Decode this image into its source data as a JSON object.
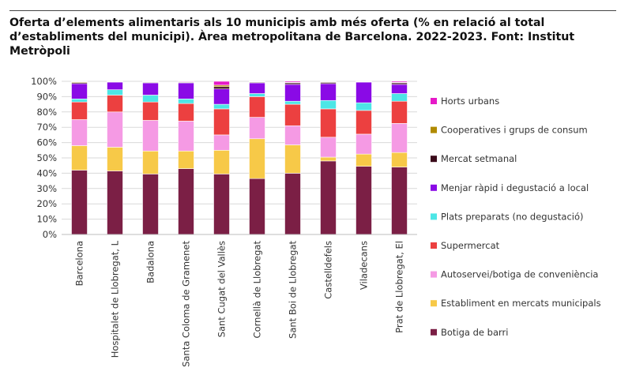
{
  "colors": {
    "Botiga de barri": "#7b1f45",
    "Establiment en mercats municipals": "#f7c948",
    "Autoservei/botiga de conveniència": "#f59ae4",
    "Supermercat": "#ec4040",
    "Plats preparats (no degustació)": "#4de6e6",
    "Menjar ràpid i degustació a local": "#8a0ae6",
    "Mercat setmanal": "#3a0a1a",
    "Cooperatives i grups de consum": "#b08a00",
    "Horts urbans": "#e619c8"
  },
  "chart_data": {
    "type": "bar",
    "stacked": true,
    "title": "Oferta d’elements alimentaris als 10 municipis amb més oferta (% en relació al total d’establiments del municipi). Àrea metropolitana de Barcelona. 2022-2023. Font: Institut Metròpoli",
    "xlabel": "",
    "ylabel": "",
    "ylim": [
      0,
      100
    ],
    "yticks": [
      "0%",
      "10%",
      "20%",
      "30%",
      "40%",
      "50%",
      "60%",
      "70%",
      "80%",
      "90%",
      "100%"
    ],
    "legend_position": "right",
    "categories": [
      "Barcelona",
      "Hospitalet de Llobregat, L",
      "Badalona",
      "Santa Coloma de Gramenet",
      "Sant Cugat del Vallès",
      "Cornellà de Llobregat",
      "Sant Boi de Llobregat",
      "Castelldefels",
      "Viladecans",
      "Prat de Llobregat, El"
    ],
    "series": [
      {
        "name": "Botiga de barri",
        "values": [
          42,
          41.5,
          39.5,
          43,
          39.5,
          36.5,
          40,
          48,
          44.5,
          44
        ]
      },
      {
        "name": "Establiment en mercats municipals",
        "values": [
          16,
          15.5,
          15,
          11.5,
          15.5,
          26,
          18.5,
          2.5,
          8,
          9.5
        ]
      },
      {
        "name": "Autoservei/botiga de conveniència",
        "values": [
          17,
          23,
          20,
          19.5,
          10,
          14,
          12.5,
          13,
          13,
          19
        ]
      },
      {
        "name": "Supermercat",
        "values": [
          11.5,
          11,
          12,
          11.5,
          17,
          13.5,
          14,
          18.5,
          15.5,
          14.5
        ]
      },
      {
        "name": "Plats preparats (no degustació)",
        "values": [
          2,
          3.5,
          4.5,
          3,
          3,
          2,
          2,
          5.5,
          5,
          5
        ]
      },
      {
        "name": "Menjar ràpid i degustació a local",
        "values": [
          10,
          5,
          8,
          10.5,
          10,
          7,
          11,
          11,
          13.5,
          6
        ]
      },
      {
        "name": "Mercat setmanal",
        "values": [
          0.7,
          0.2,
          0.4,
          0.4,
          1.5,
          0.5,
          1,
          0.8,
          0.2,
          1
        ]
      },
      {
        "name": "Cooperatives i grups de consum",
        "values": [
          0.5,
          0.2,
          0.3,
          0.2,
          1,
          0.3,
          0.3,
          0.4,
          0.1,
          0.3
        ]
      },
      {
        "name": "Horts urbans",
        "values": [
          0.3,
          0.1,
          0.3,
          0.4,
          2.5,
          0.2,
          0.7,
          0.3,
          0.2,
          0.7
        ]
      }
    ],
    "legend": [
      "Horts urbans",
      "Cooperatives i grups de consum",
      "Mercat setmanal",
      "Menjar ràpid i degustació a local",
      "Plats preparats (no degustació)",
      "Supermercat",
      "Autoservei/botiga de conveniència",
      "Establiment en mercats municipals",
      "Botiga de barri"
    ]
  }
}
